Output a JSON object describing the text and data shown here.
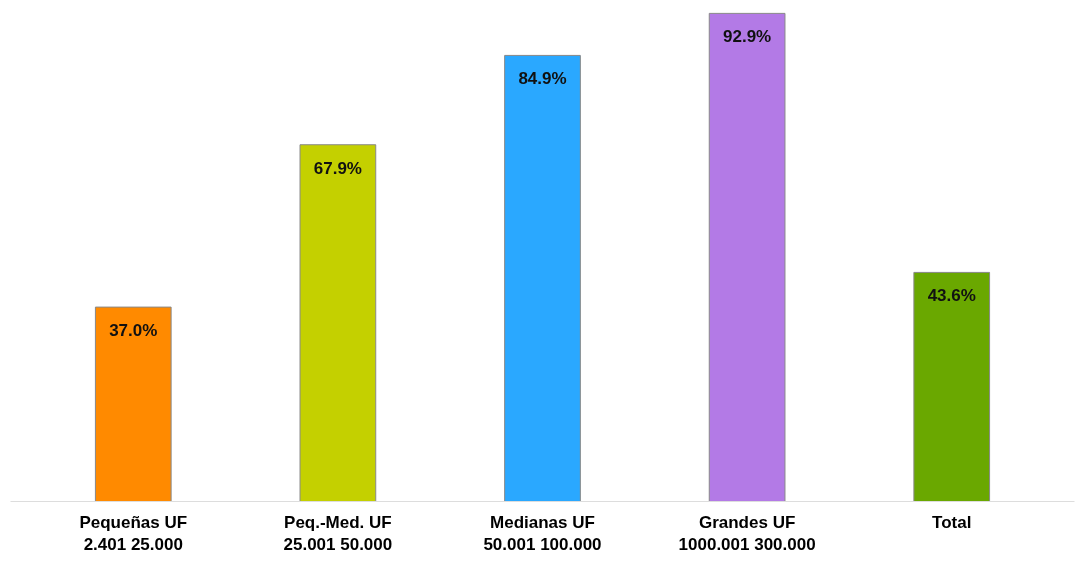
{
  "chart_data": {
    "type": "bar",
    "categories": [
      "Pequeñas UF\n2.401 25.000",
      "Peq.-Med. UF\n25.001 50.000",
      "Medianas UF\n50.001 100.000",
      "Grandes UF\n1000.001 300.000",
      "Total"
    ],
    "values": [
      37.0,
      67.9,
      84.9,
      92.9,
      43.6
    ],
    "value_labels": [
      "37.0%",
      "67.9%",
      "84.9%",
      "92.9%",
      "43.6%"
    ],
    "colors": [
      "#ff8a00",
      "#c4d000",
      "#2aa8ff",
      "#b37ae6",
      "#6aa800"
    ]
  }
}
